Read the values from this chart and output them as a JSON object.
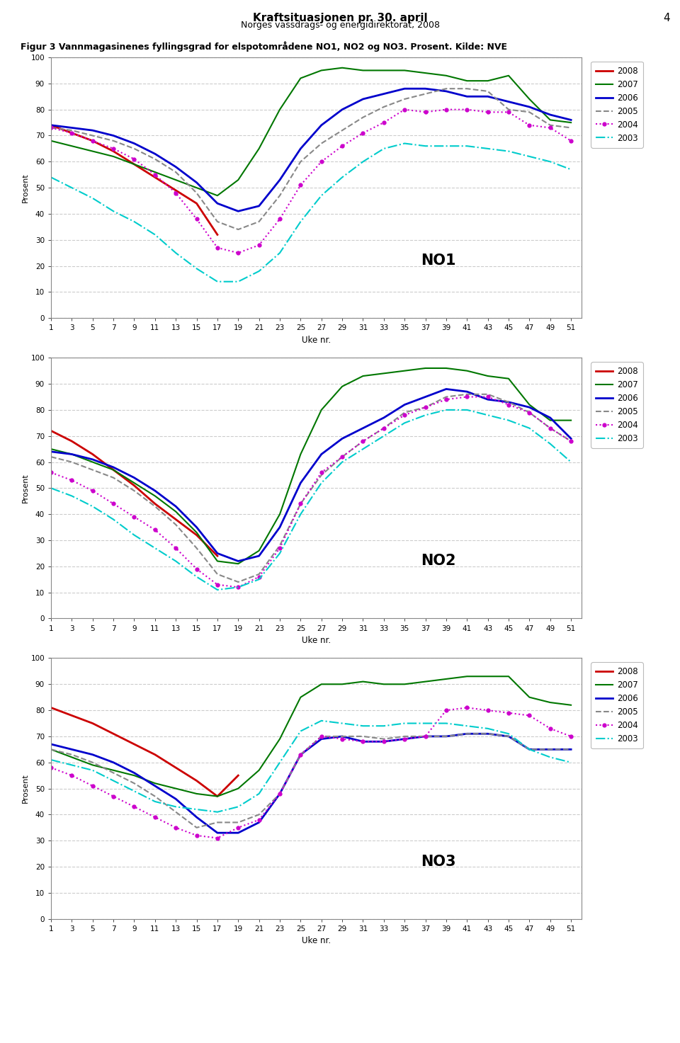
{
  "title": "Kraftsituasjonen pr. 30. april",
  "subtitle": "Norges vassdrags- og energidirektorat, 2008",
  "page_number": "4",
  "figure_caption": "Figur 3 Vannmagasinenes fyllingsgrad for elspotomådene NO1, NO2 og NO3. Prosent. Kilde: NVE",
  "ylabel": "Prosent",
  "xlabel": "Uke nr.",
  "weeks": [
    1,
    3,
    5,
    7,
    9,
    11,
    13,
    15,
    17,
    19,
    21,
    23,
    25,
    27,
    29,
    31,
    33,
    35,
    37,
    39,
    41,
    43,
    45,
    47,
    49,
    51
  ],
  "colors": {
    "2008": "#cc0000",
    "2007": "#007700",
    "2006": "#0000cc",
    "2005": "#888888",
    "2004": "#cc00cc",
    "2003": "#00cccc"
  },
  "NO1": {
    "2008": [
      74,
      71,
      68,
      64,
      59,
      54,
      49,
      44,
      32,
      null,
      null,
      null,
      null,
      null,
      null,
      null,
      null,
      null,
      null,
      null,
      null,
      null,
      null,
      null,
      null,
      null
    ],
    "2007": [
      68,
      66,
      64,
      62,
      59,
      56,
      53,
      50,
      47,
      53,
      65,
      80,
      92,
      95,
      96,
      95,
      95,
      95,
      94,
      93,
      91,
      91,
      93,
      84,
      76,
      75
    ],
    "2006": [
      74,
      73,
      72,
      70,
      67,
      63,
      58,
      52,
      44,
      41,
      43,
      53,
      65,
      74,
      80,
      84,
      86,
      88,
      88,
      87,
      85,
      85,
      83,
      81,
      78,
      76
    ],
    "2005": [
      73,
      72,
      70,
      68,
      65,
      61,
      56,
      48,
      37,
      34,
      37,
      47,
      60,
      67,
      72,
      77,
      81,
      84,
      86,
      88,
      88,
      87,
      80,
      79,
      74,
      73
    ],
    "2004": [
      73,
      71,
      68,
      65,
      61,
      55,
      48,
      38,
      27,
      25,
      28,
      38,
      51,
      60,
      66,
      71,
      75,
      80,
      79,
      80,
      80,
      79,
      79,
      74,
      73,
      68
    ],
    "2003": [
      54,
      50,
      46,
      41,
      37,
      32,
      25,
      19,
      14,
      14,
      18,
      25,
      37,
      47,
      54,
      60,
      65,
      67,
      66,
      66,
      66,
      65,
      64,
      62,
      60,
      57
    ]
  },
  "NO2": {
    "2008": [
      72,
      68,
      63,
      57,
      51,
      44,
      38,
      32,
      24,
      null,
      null,
      null,
      null,
      null,
      null,
      null,
      null,
      null,
      null,
      null,
      null,
      null,
      null,
      null,
      null,
      null
    ],
    "2007": [
      65,
      63,
      60,
      57,
      52,
      47,
      41,
      33,
      22,
      21,
      26,
      40,
      63,
      80,
      89,
      93,
      94,
      95,
      96,
      96,
      95,
      93,
      92,
      82,
      76,
      76
    ],
    "2006": [
      64,
      63,
      61,
      58,
      54,
      49,
      43,
      35,
      25,
      22,
      24,
      35,
      52,
      63,
      69,
      73,
      77,
      82,
      85,
      88,
      87,
      84,
      83,
      81,
      77,
      69
    ],
    "2005": [
      62,
      60,
      57,
      54,
      49,
      43,
      36,
      27,
      17,
      14,
      17,
      28,
      44,
      55,
      62,
      68,
      73,
      79,
      81,
      85,
      86,
      86,
      83,
      79,
      73,
      68
    ],
    "2004": [
      56,
      53,
      49,
      44,
      39,
      34,
      27,
      19,
      13,
      12,
      16,
      27,
      44,
      56,
      62,
      68,
      73,
      78,
      81,
      84,
      85,
      85,
      82,
      79,
      73,
      68
    ],
    "2003": [
      50,
      47,
      43,
      38,
      32,
      27,
      22,
      16,
      11,
      12,
      15,
      25,
      40,
      52,
      60,
      65,
      70,
      75,
      78,
      80,
      80,
      78,
      76,
      73,
      67,
      60
    ]
  },
  "NO3": {
    "2008": [
      81,
      78,
      75,
      71,
      67,
      63,
      58,
      53,
      47,
      55,
      null,
      null,
      null,
      null,
      null,
      null,
      null,
      null,
      null,
      null,
      null,
      null,
      null,
      null,
      null,
      null
    ],
    "2007": [
      65,
      62,
      59,
      57,
      55,
      52,
      50,
      48,
      47,
      50,
      57,
      69,
      85,
      90,
      90,
      91,
      90,
      90,
      91,
      92,
      93,
      93,
      93,
      85,
      83,
      82
    ],
    "2006": [
      67,
      65,
      63,
      60,
      56,
      51,
      46,
      39,
      33,
      33,
      37,
      48,
      63,
      69,
      70,
      68,
      68,
      69,
      70,
      70,
      71,
      71,
      70,
      65,
      65,
      65
    ],
    "2005": [
      65,
      63,
      60,
      56,
      52,
      47,
      41,
      35,
      37,
      37,
      40,
      48,
      63,
      70,
      70,
      70,
      69,
      70,
      70,
      70,
      71,
      71,
      70,
      65,
      65,
      65
    ],
    "2004": [
      58,
      55,
      51,
      47,
      43,
      39,
      35,
      32,
      31,
      35,
      38,
      48,
      63,
      70,
      69,
      68,
      68,
      69,
      70,
      80,
      81,
      80,
      79,
      78,
      73,
      70
    ],
    "2003": [
      61,
      59,
      57,
      53,
      49,
      45,
      43,
      42,
      41,
      43,
      48,
      60,
      72,
      76,
      75,
      74,
      74,
      75,
      75,
      75,
      74,
      73,
      71,
      65,
      62,
      60
    ]
  },
  "yticks": [
    0,
    10,
    20,
    30,
    40,
    50,
    60,
    70,
    80,
    90,
    100
  ],
  "xticks": [
    1,
    3,
    5,
    7,
    9,
    11,
    13,
    15,
    17,
    19,
    21,
    23,
    25,
    27,
    29,
    31,
    33,
    35,
    37,
    39,
    41,
    43,
    45,
    47,
    49,
    51
  ]
}
